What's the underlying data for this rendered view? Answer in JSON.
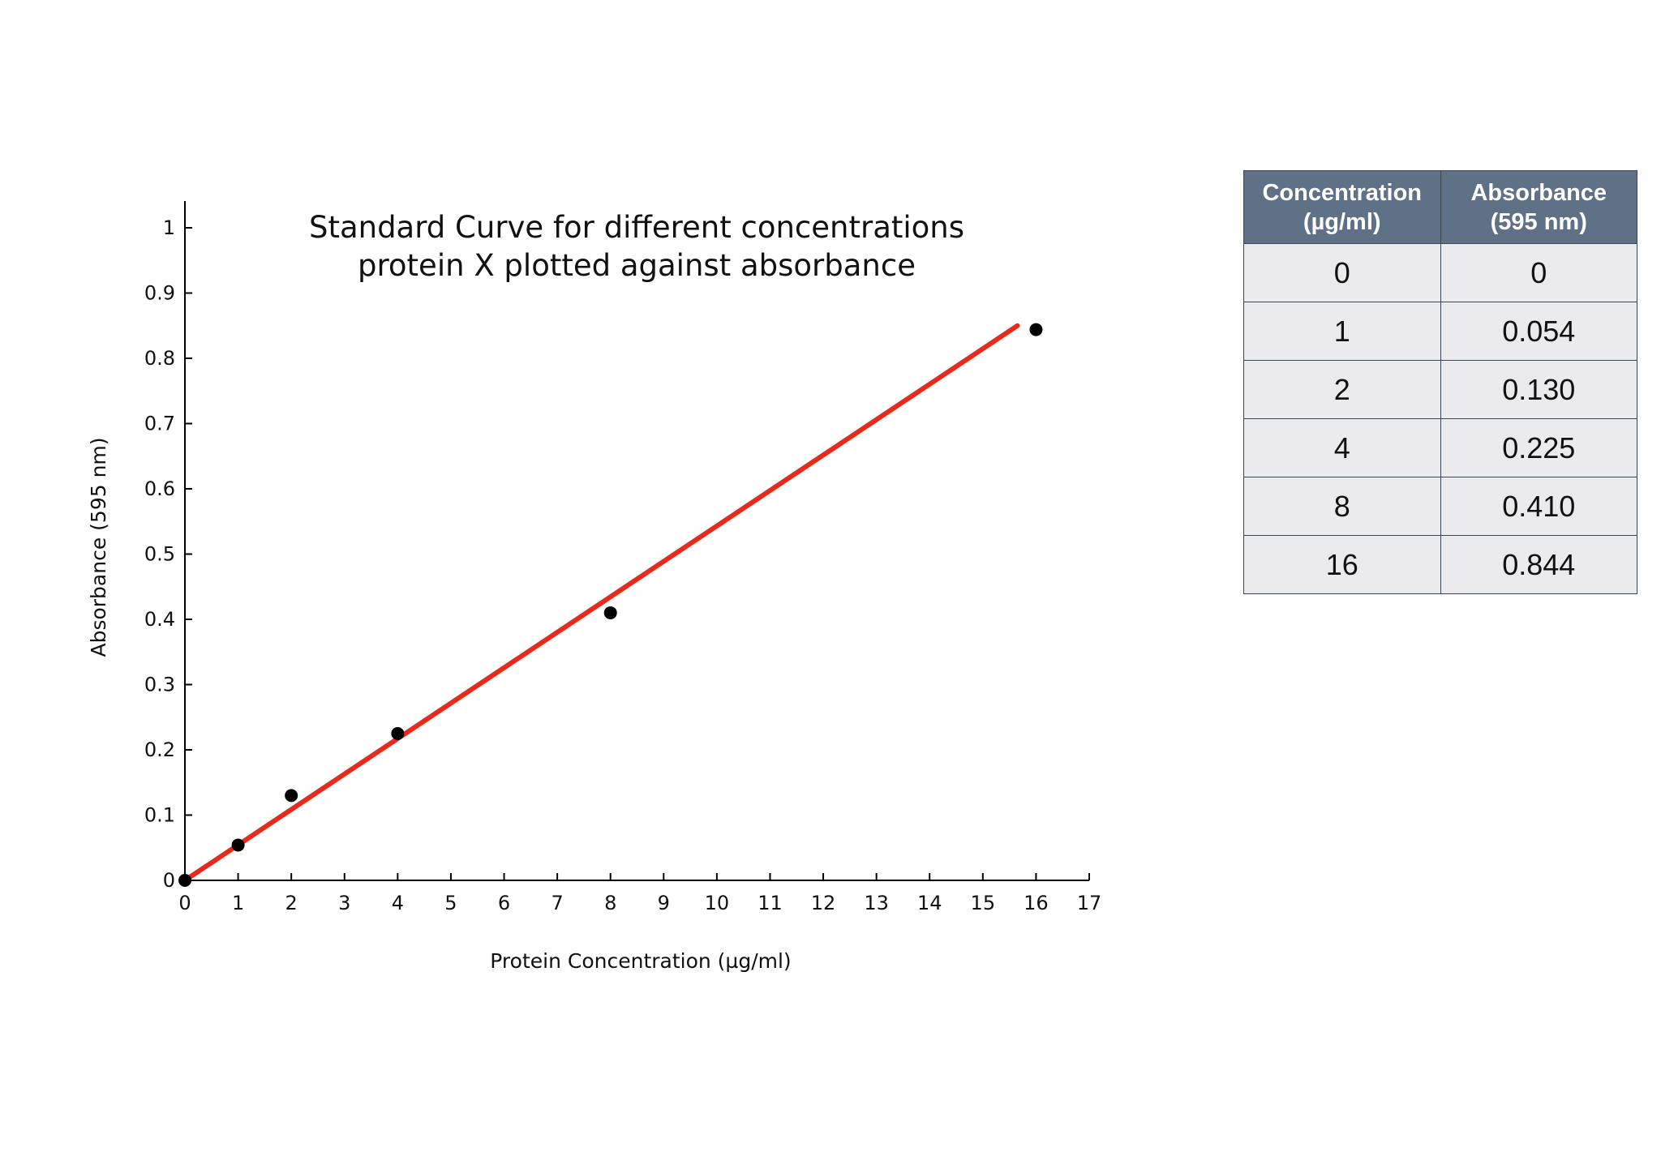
{
  "chart_data": {
    "type": "scatter",
    "title": [
      "Standard Curve for different concentrations",
      "protein X plotted against absorbance"
    ],
    "xlabel": "Protein Concentration (µg/ml)",
    "ylabel": "Absorbance (595 nm)",
    "xlim": [
      0,
      17
    ],
    "ylim": [
      0,
      1
    ],
    "x_ticks": [
      "0",
      "1",
      "2",
      "3",
      "4",
      "5",
      "6",
      "7",
      "8",
      "9",
      "10",
      "11",
      "12",
      "13",
      "14",
      "15",
      "16",
      "17"
    ],
    "y_ticks": [
      "0",
      "0.1",
      "0.2",
      "0.3",
      "0.4",
      "0.5",
      "0.6",
      "0.7",
      "0.8",
      "0.9",
      "1"
    ],
    "grid": false,
    "points": [
      {
        "x": 0,
        "y": 0
      },
      {
        "x": 1,
        "y": 0.054
      },
      {
        "x": 2,
        "y": 0.13
      },
      {
        "x": 4,
        "y": 0.225
      },
      {
        "x": 8,
        "y": 0.41
      },
      {
        "x": 16,
        "y": 0.844
      }
    ],
    "trendline": {
      "x0": 0,
      "y0": 0,
      "x1": 15.65,
      "y1": 0.85,
      "color": "#e8291c"
    },
    "point_color": "#000000"
  },
  "table": {
    "headers": [
      [
        "Concentration",
        "(µg/ml)"
      ],
      [
        "Absorbance",
        "(595 nm)"
      ]
    ],
    "rows": [
      [
        "0",
        "0"
      ],
      [
        "1",
        "0.054"
      ],
      [
        "2",
        "0.130"
      ],
      [
        "4",
        "0.225"
      ],
      [
        "8",
        "0.410"
      ],
      [
        "16",
        "0.844"
      ]
    ],
    "header_color": "#5e7187",
    "cell_color": "#ebebed"
  }
}
